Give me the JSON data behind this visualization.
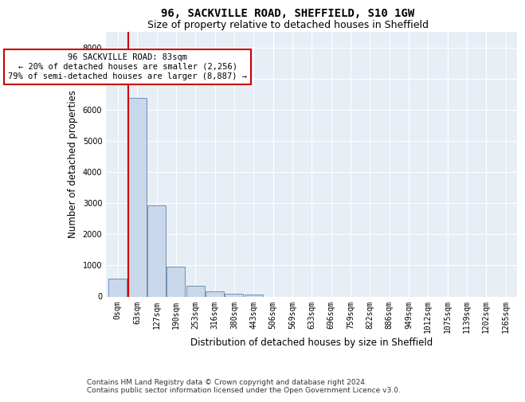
{
  "title1": "96, SACKVILLE ROAD, SHEFFIELD, S10 1GW",
  "title2": "Size of property relative to detached houses in Sheffield",
  "xlabel": "Distribution of detached houses by size in Sheffield",
  "ylabel": "Number of detached properties",
  "footnote1": "Contains HM Land Registry data © Crown copyright and database right 2024.",
  "footnote2": "Contains public sector information licensed under the Open Government Licence v3.0.",
  "bin_labels": [
    "0sqm",
    "63sqm",
    "127sqm",
    "190sqm",
    "253sqm",
    "316sqm",
    "380sqm",
    "443sqm",
    "506sqm",
    "569sqm",
    "633sqm",
    "696sqm",
    "759sqm",
    "822sqm",
    "886sqm",
    "949sqm",
    "1012sqm",
    "1075sqm",
    "1139sqm",
    "1202sqm",
    "1265sqm"
  ],
  "bar_values": [
    580,
    6380,
    2920,
    960,
    350,
    160,
    100,
    70,
    0,
    0,
    0,
    0,
    0,
    0,
    0,
    0,
    0,
    0,
    0,
    0,
    0
  ],
  "bar_color": "#c8d8ea",
  "bar_edgecolor": "#7090b8",
  "property_bin_index": 1,
  "marker_color": "#cc0000",
  "annotation_line1": "96 SACKVILLE ROAD: 83sqm",
  "annotation_line2": "← 20% of detached houses are smaller (2,256)",
  "annotation_line3": "79% of semi-detached houses are larger (8,887) →",
  "annotation_box_edgecolor": "#cc0000",
  "ylim": [
    0,
    8500
  ],
  "yticks": [
    0,
    1000,
    2000,
    3000,
    4000,
    5000,
    6000,
    7000,
    8000
  ],
  "fig_bg_color": "#ffffff",
  "ax_bg_color": "#e8eef5",
  "grid_color": "#ffffff",
  "title_fontsize": 10,
  "subtitle_fontsize": 9,
  "axis_label_fontsize": 8.5,
  "tick_fontsize": 7,
  "annot_fontsize": 7.5,
  "footnote_fontsize": 6.5
}
